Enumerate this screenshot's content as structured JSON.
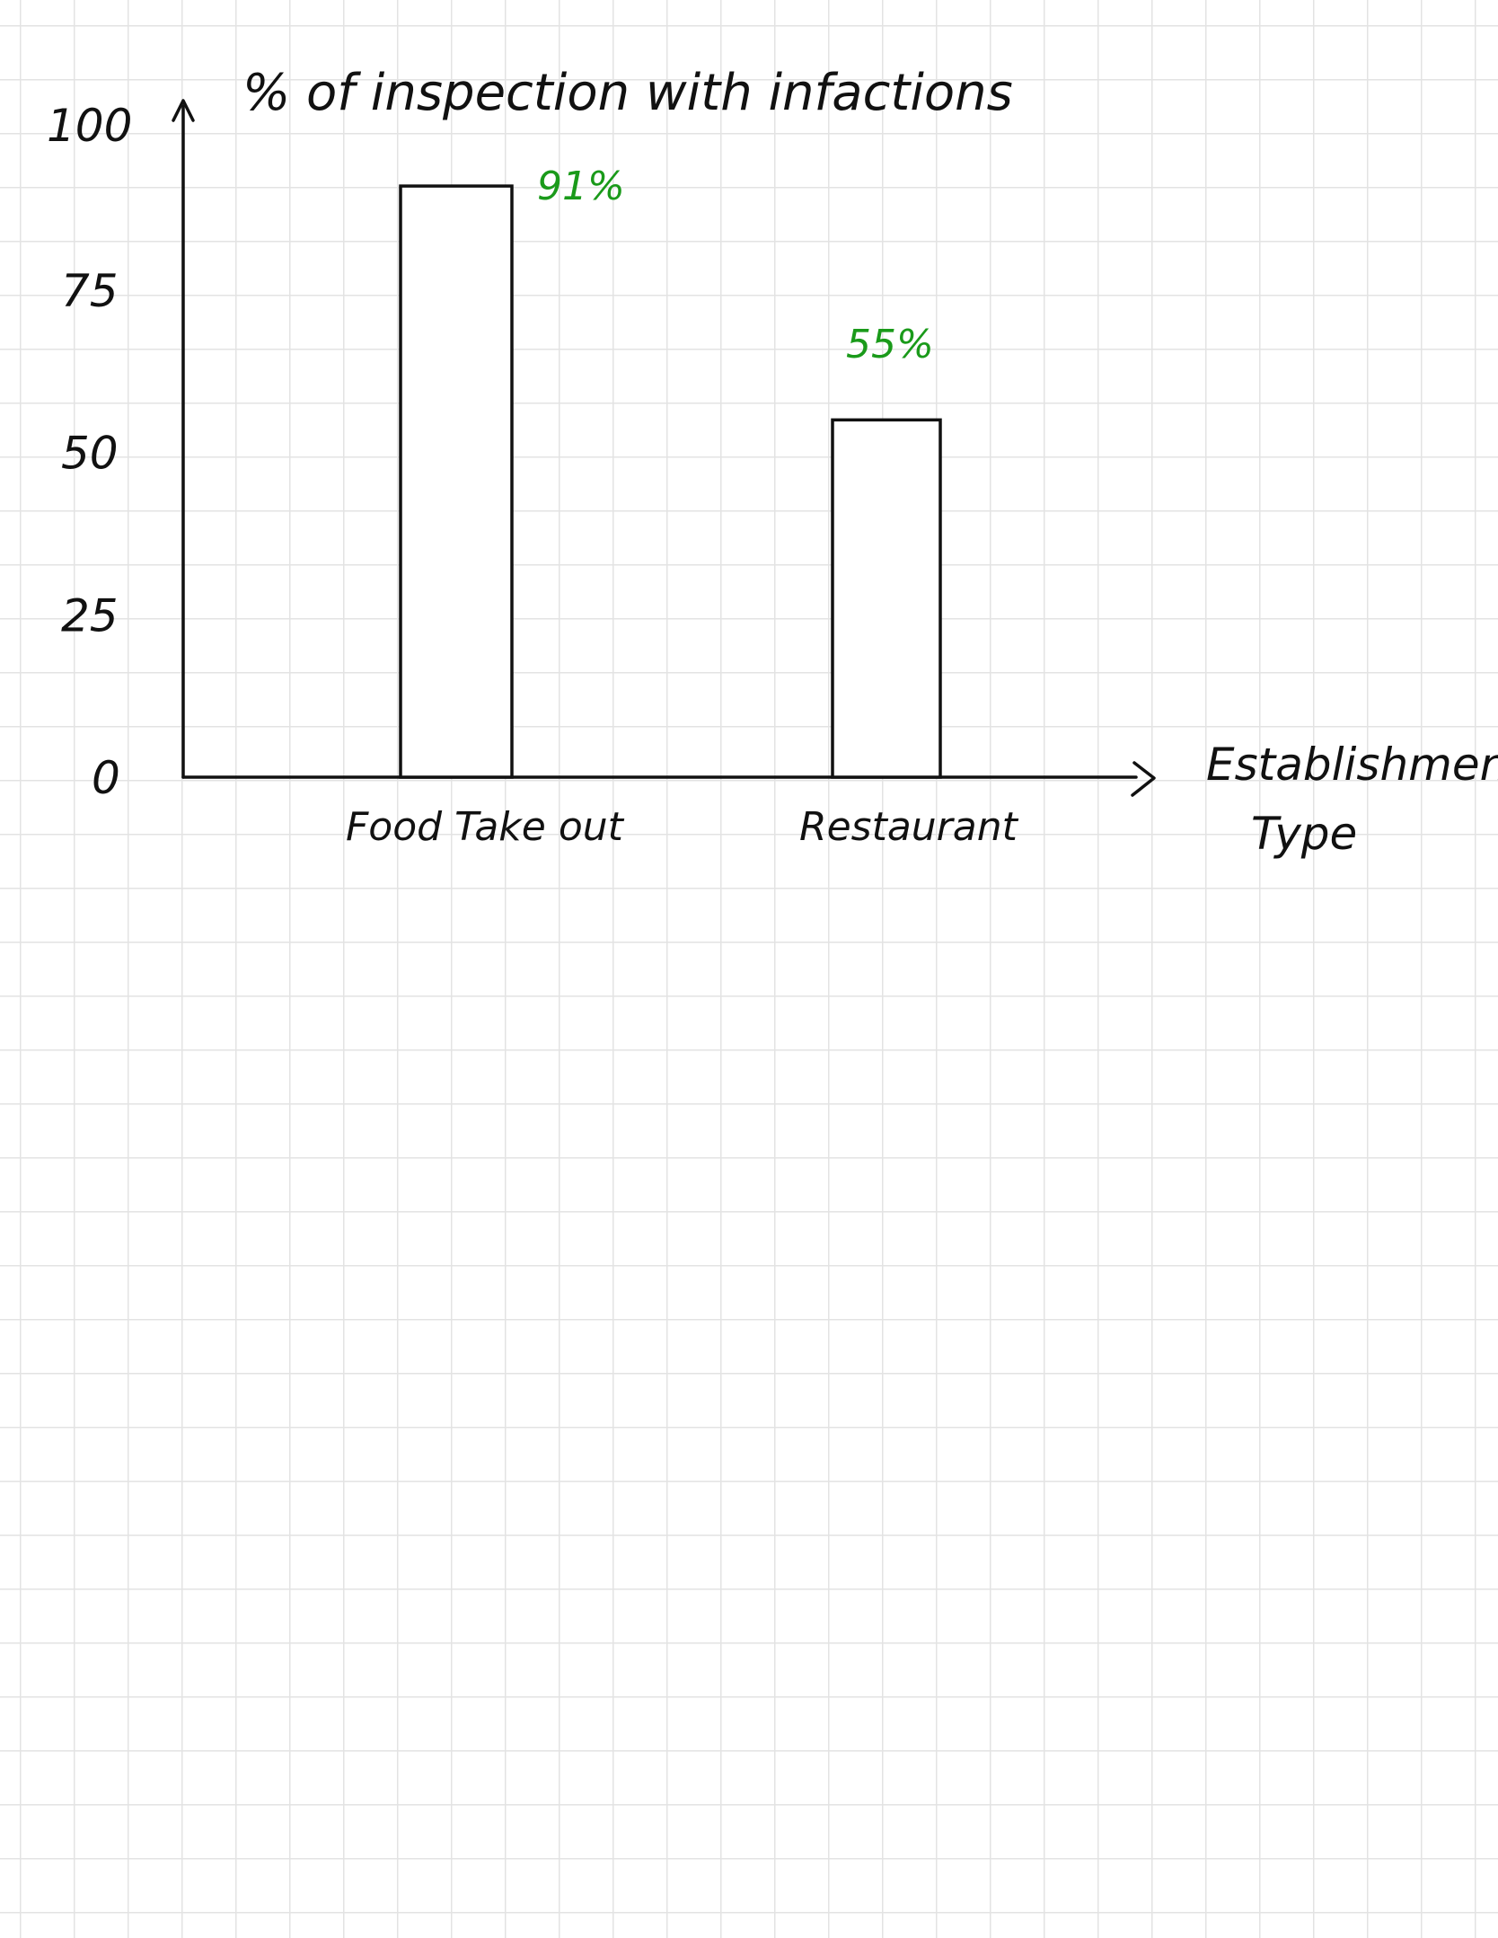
{
  "chart_data": {
    "type": "bar",
    "title": "% of inspection with infactions",
    "xlabel": "Establishment Type",
    "categories": [
      "Food Take out",
      "Restaurant"
    ],
    "values": [
      91,
      55
    ],
    "data_labels": [
      "91%",
      "55%"
    ],
    "yticks": [
      "0",
      "25",
      "50",
      "75",
      "100"
    ],
    "ytick_values": [
      0,
      25,
      50,
      75,
      100
    ],
    "ylim": [
      0,
      100
    ],
    "grid": false,
    "colors": {
      "bar_fill": "#ffffff",
      "bar_stroke": "#111111",
      "data_label": "#1a9a1a",
      "axis": "#111111"
    }
  }
}
